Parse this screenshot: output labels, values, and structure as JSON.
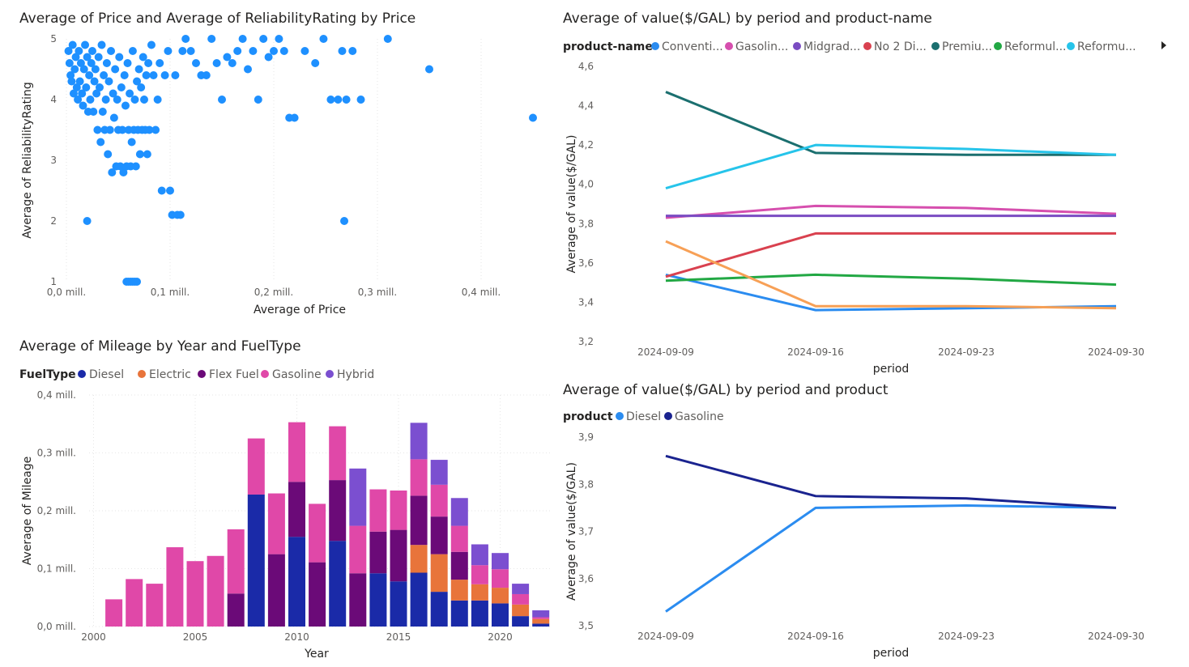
{
  "colors": {
    "diesel": "#1a2aa8",
    "electric": "#e8743b",
    "flex_fuel": "#6b0a78",
    "gasoline": "#e048a8",
    "hybrid": "#7b4fd0",
    "scatter": "#1e90ff",
    "gridline": "#e6e6e6"
  },
  "scatter_panel": {
    "title": "Average of Price and Average of ReliabilityRating by Price",
    "xlabel": "Average of Price",
    "ylabel": "Average of ReliabilityRating",
    "xticks": [
      "0,0 mill.",
      "0,1 mill.",
      "0,2 mill.",
      "0,3 mill.",
      "0,4 mill."
    ],
    "yticks": [
      "1",
      "2",
      "3",
      "4",
      "5"
    ]
  },
  "bar_panel": {
    "title": "Average of Mileage by Year and FuelType",
    "legend_title": "FuelType",
    "xlabel": "Year",
    "ylabel": "Average of Mileage",
    "xticks": [
      "2000",
      "2005",
      "2010",
      "2015",
      "2020"
    ],
    "yticks": [
      "0,0 mill.",
      "0,1 mill.",
      "0,2 mill.",
      "0,3 mill.",
      "0,4 mill."
    ]
  },
  "line1_panel": {
    "title": "Average of value($/GAL) by period and product-name",
    "legend_title": "product-name",
    "xlabel": "period",
    "ylabel": "Average of value($/GAL)",
    "yticks": [
      "3,2",
      "3,4",
      "3,6",
      "3,8",
      "4,0",
      "4,2",
      "4,4",
      "4,6"
    ],
    "legend_more_icon": "chevron-right-icon"
  },
  "line2_panel": {
    "title": "Average of value($/GAL) by period and product",
    "legend_title": "product",
    "xlabel": "period",
    "ylabel": "Average of value($/GAL)",
    "yticks": [
      "3,5",
      "3,6",
      "3,7",
      "3,8",
      "3,9"
    ]
  },
  "chart_data": [
    {
      "type": "scatter",
      "title": "Average of Price and Average of ReliabilityRating by Price",
      "xlabel": "Average of Price",
      "ylabel": "Average of ReliabilityRating",
      "xlim": [
        0,
        450000
      ],
      "ylim": [
        1,
        5
      ],
      "points": [
        [
          2000,
          4.8
        ],
        [
          3000,
          4.6
        ],
        [
          4000,
          4.4
        ],
        [
          5000,
          4.3
        ],
        [
          6000,
          4.9
        ],
        [
          7000,
          4.1
        ],
        [
          8000,
          4.5
        ],
        [
          9000,
          4.7
        ],
        [
          10000,
          4.2
        ],
        [
          11000,
          4.0
        ],
        [
          12000,
          4.8
        ],
        [
          13000,
          4.3
        ],
        [
          14000,
          4.6
        ],
        [
          15000,
          4.1
        ],
        [
          16000,
          3.9
        ],
        [
          17000,
          4.5
        ],
        [
          18000,
          4.9
        ],
        [
          19000,
          4.2
        ],
        [
          20000,
          4.7
        ],
        [
          21000,
          3.8
        ],
        [
          22000,
          4.4
        ],
        [
          23000,
          4.0
        ],
        [
          24000,
          4.6
        ],
        [
          25000,
          4.8
        ],
        [
          26000,
          3.8
        ],
        [
          27000,
          4.3
        ],
        [
          28000,
          4.5
        ],
        [
          29000,
          4.1
        ],
        [
          30000,
          3.5
        ],
        [
          31000,
          4.7
        ],
        [
          32000,
          4.2
        ],
        [
          33000,
          3.3
        ],
        [
          34000,
          4.9
        ],
        [
          35000,
          3.8
        ],
        [
          36000,
          4.4
        ],
        [
          37000,
          3.5
        ],
        [
          38000,
          4.0
        ],
        [
          39000,
          4.6
        ],
        [
          40000,
          3.1
        ],
        [
          41000,
          4.3
        ],
        [
          42000,
          3.5
        ],
        [
          43000,
          4.8
        ],
        [
          44000,
          2.8
        ],
        [
          45000,
          4.1
        ],
        [
          46000,
          3.7
        ],
        [
          47000,
          4.5
        ],
        [
          48000,
          2.9
        ],
        [
          49000,
          4.0
        ],
        [
          50000,
          3.5
        ],
        [
          51000,
          4.7
        ],
        [
          52000,
          2.9
        ],
        [
          53000,
          4.2
        ],
        [
          54000,
          3.5
        ],
        [
          55000,
          2.8
        ],
        [
          56000,
          4.4
        ],
        [
          57000,
          3.9
        ],
        [
          58000,
          2.9
        ],
        [
          59000,
          4.6
        ],
        [
          60000,
          3.5
        ],
        [
          61000,
          4.1
        ],
        [
          62000,
          2.9
        ],
        [
          63000,
          3.3
        ],
        [
          64000,
          4.8
        ],
        [
          65000,
          3.5
        ],
        [
          66000,
          4.0
        ],
        [
          67000,
          2.9
        ],
        [
          68000,
          4.3
        ],
        [
          69000,
          3.5
        ],
        [
          70000,
          4.5
        ],
        [
          71000,
          3.1
        ],
        [
          72000,
          4.2
        ],
        [
          73000,
          3.5
        ],
        [
          74000,
          4.7
        ],
        [
          75000,
          4.0
        ],
        [
          76000,
          3.5
        ],
        [
          77000,
          4.4
        ],
        [
          78000,
          3.1
        ],
        [
          79000,
          4.6
        ],
        [
          80000,
          3.5
        ],
        [
          82000,
          4.9
        ],
        [
          84000,
          4.4
        ],
        [
          86000,
          3.5
        ],
        [
          88000,
          4.0
        ],
        [
          90000,
          4.6
        ],
        [
          92000,
          2.5
        ],
        [
          95000,
          4.4
        ],
        [
          98000,
          4.8
        ],
        [
          100000,
          2.5
        ],
        [
          102000,
          2.1
        ],
        [
          105000,
          4.4
        ],
        [
          107000,
          2.1
        ],
        [
          110000,
          2.1
        ],
        [
          112000,
          4.8
        ],
        [
          115000,
          5.0
        ],
        [
          120000,
          4.8
        ],
        [
          125000,
          4.6
        ],
        [
          130000,
          4.4
        ],
        [
          135000,
          4.4
        ],
        [
          140000,
          5.0
        ],
        [
          145000,
          4.6
        ],
        [
          150000,
          4.0
        ],
        [
          155000,
          4.7
        ],
        [
          160000,
          4.6
        ],
        [
          165000,
          4.8
        ],
        [
          170000,
          5.0
        ],
        [
          175000,
          4.5
        ],
        [
          180000,
          4.8
        ],
        [
          185000,
          4.0
        ],
        [
          190000,
          5.0
        ],
        [
          195000,
          4.7
        ],
        [
          200000,
          4.8
        ],
        [
          205000,
          5.0
        ],
        [
          210000,
          4.8
        ],
        [
          215000,
          3.7
        ],
        [
          220000,
          3.7
        ],
        [
          230000,
          4.8
        ],
        [
          240000,
          4.6
        ],
        [
          248000,
          5.0
        ],
        [
          255000,
          4.0
        ],
        [
          262000,
          4.0
        ],
        [
          266000,
          4.8
        ],
        [
          268000,
          2.0
        ],
        [
          270000,
          4.0
        ],
        [
          276000,
          4.8
        ],
        [
          284000,
          4.0
        ],
        [
          310000,
          5.0
        ],
        [
          350000,
          4.5
        ],
        [
          450000,
          3.7
        ],
        [
          58000,
          1.0
        ],
        [
          60000,
          1.0
        ],
        [
          62000,
          1.0
        ],
        [
          64000,
          1.0
        ],
        [
          66000,
          1.0
        ],
        [
          68000,
          1.0
        ],
        [
          20000,
          2.0
        ]
      ]
    },
    {
      "type": "bar",
      "stacked": true,
      "title": "Average of Mileage by Year and FuelType",
      "xlabel": "Year",
      "ylabel": "Average of Mileage",
      "legend_title": "FuelType",
      "ylim": [
        0,
        400000
      ],
      "categories": [
        2001,
        2002,
        2003,
        2004,
        2005,
        2006,
        2007,
        2008,
        2009,
        2010,
        2011,
        2012,
        2013,
        2014,
        2015,
        2016,
        2017,
        2018,
        2019,
        2020,
        2021,
        2022
      ],
      "series": [
        {
          "name": "Diesel",
          "color_key": "diesel",
          "values": [
            0,
            0,
            0,
            0,
            0,
            0,
            0,
            228000,
            0,
            155000,
            0,
            148000,
            0,
            92000,
            78000,
            93000,
            60000,
            45000,
            45000,
            40000,
            18000,
            5000
          ]
        },
        {
          "name": "Electric",
          "color_key": "electric",
          "values": [
            0,
            0,
            0,
            0,
            0,
            0,
            0,
            0,
            0,
            0,
            0,
            0,
            0,
            0,
            0,
            48000,
            65000,
            36000,
            28000,
            27000,
            20000,
            8000
          ]
        },
        {
          "name": "Flex Fuel",
          "color_key": "flex_fuel",
          "values": [
            0,
            0,
            0,
            0,
            0,
            0,
            57000,
            0,
            125000,
            95000,
            111000,
            105000,
            92000,
            72000,
            89000,
            85000,
            65000,
            48000,
            0,
            0,
            0,
            0
          ]
        },
        {
          "name": "Gasoline",
          "color_key": "gasoline",
          "values": [
            47000,
            82000,
            74000,
            137000,
            113000,
            122000,
            111000,
            97000,
            105000,
            103000,
            101000,
            93000,
            82000,
            73000,
            68000,
            63000,
            55000,
            45000,
            33000,
            32000,
            18000,
            3000
          ]
        },
        {
          "name": "Hybrid",
          "color_key": "hybrid",
          "values": [
            0,
            0,
            0,
            0,
            0,
            0,
            0,
            0,
            0,
            0,
            0,
            0,
            99000,
            0,
            0,
            63000,
            43000,
            48000,
            36000,
            28000,
            18000,
            12000
          ]
        }
      ]
    },
    {
      "type": "line",
      "title": "Average of value($/GAL) by period and product-name",
      "xlabel": "period",
      "ylabel": "Average of value($/GAL)",
      "legend_title": "product-name",
      "ylim": [
        3.2,
        4.6
      ],
      "x": [
        "2024-09-09",
        "2024-09-16",
        "2024-09-23",
        "2024-09-30"
      ],
      "series": [
        {
          "name": "Conventi...",
          "color": "#2b8cf0",
          "values": [
            3.54,
            3.36,
            3.37,
            3.38
          ]
        },
        {
          "name": "Gasolin...",
          "color": "#d64fae",
          "values": [
            3.83,
            3.89,
            3.88,
            3.85
          ]
        },
        {
          "name": "Midgrad...",
          "color": "#7a4cc2",
          "values": [
            3.84,
            3.84,
            3.84,
            3.84
          ]
        },
        {
          "name": "No 2 Di...",
          "color": "#d9414f",
          "values": [
            3.53,
            3.75,
            3.75,
            3.75
          ]
        },
        {
          "name": "Premiu...",
          "color": "#1b6f6f",
          "values": [
            4.47,
            4.16,
            4.15,
            4.15
          ]
        },
        {
          "name": "Reformul...",
          "color": "#22a844",
          "values": [
            3.51,
            3.54,
            3.52,
            3.49
          ]
        },
        {
          "name": "Reformu...",
          "color": "#26c4ea",
          "values": [
            3.98,
            4.2,
            4.18,
            4.15
          ]
        },
        {
          "name": "",
          "color": "#f7a056",
          "values": [
            3.71,
            3.38,
            3.38,
            3.37
          ]
        }
      ]
    },
    {
      "type": "line",
      "title": "Average of value($/GAL) by period and product",
      "xlabel": "period",
      "ylabel": "Average of value($/GAL)",
      "legend_title": "product",
      "ylim": [
        3.5,
        3.9
      ],
      "x": [
        "2024-09-09",
        "2024-09-16",
        "2024-09-23",
        "2024-09-30"
      ],
      "series": [
        {
          "name": "Diesel",
          "color": "#2b8cf0",
          "values": [
            3.53,
            3.75,
            3.755,
            3.75
          ]
        },
        {
          "name": "Gasoline",
          "color": "#1a238f",
          "values": [
            3.86,
            3.775,
            3.77,
            3.75
          ]
        }
      ]
    }
  ]
}
